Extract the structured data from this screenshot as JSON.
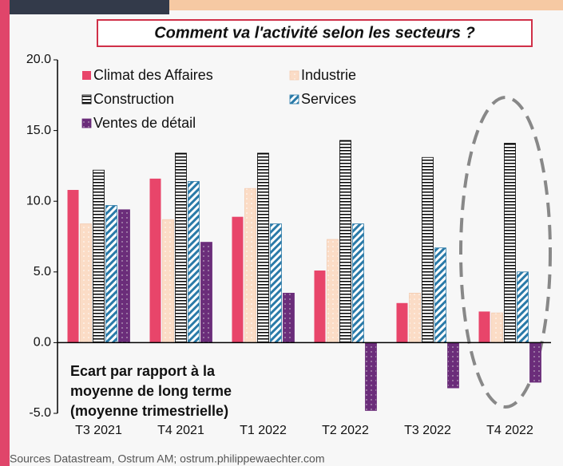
{
  "chart_data": {
    "type": "bar",
    "title": "Comment va l'activité selon les secteurs ?",
    "annotation": [
      "Ecart par rapport à la",
      "moyenne de long terme",
      "(moyenne trimestrielle)"
    ],
    "source": "Sources Datastream, Ostrum AM; ostrum.philippewaechter.com",
    "categories": [
      "T3 2021",
      "T4 2021",
      "T1 2022",
      "T2 2022",
      "T3 2022",
      "T4 2022"
    ],
    "series": [
      {
        "name": "Climat des Affaires",
        "color": "#e8456a",
        "pattern": "solid",
        "values": [
          10.8,
          11.6,
          8.9,
          5.1,
          2.8,
          2.2
        ]
      },
      {
        "name": "Industrie",
        "color": "#fbdcc6",
        "pattern": "dots",
        "values": [
          8.4,
          8.7,
          10.9,
          7.3,
          3.5,
          2.1
        ]
      },
      {
        "name": "Construction",
        "color": "#000000",
        "pattern": "hstripes",
        "values": [
          12.2,
          13.4,
          13.4,
          14.3,
          13.1,
          14.1
        ]
      },
      {
        "name": "Services",
        "color": "#2a7aa8",
        "pattern": "diagonal",
        "values": [
          9.7,
          11.4,
          8.4,
          8.4,
          6.7,
          5.0
        ]
      },
      {
        "name": "Ventes de détail",
        "color": "#6b2d7a",
        "pattern": "darkdots",
        "values": [
          9.4,
          7.1,
          3.5,
          -4.8,
          -3.2,
          -2.8
        ]
      }
    ],
    "ylim": [
      -5,
      20
    ],
    "yticks": [
      {
        "value": -5,
        "label": "-5.0"
      },
      {
        "value": 0,
        "label": "0.0"
      },
      {
        "value": 5,
        "label": "5.0"
      },
      {
        "value": 10,
        "label": "10.0"
      },
      {
        "value": 15,
        "label": "15.0"
      },
      {
        "value": 20,
        "label": "20.0"
      }
    ],
    "grid": false
  }
}
